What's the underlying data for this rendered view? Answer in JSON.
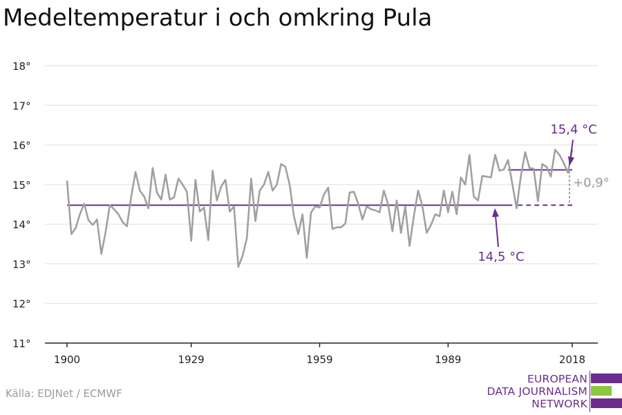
{
  "title": "Medeltemperatur i och omkring Pula",
  "source": "Källa: EDJNet / ECMWF",
  "logo": {
    "line1": "EUROPEAN",
    "line2": "DATA JOURNALISM",
    "line3": "NETWORK"
  },
  "colors": {
    "line": "#a0a0a0",
    "accent": "#6a2c8e",
    "grid": "#dddddd",
    "axis": "#222222",
    "logo_green": "#8dc63f"
  },
  "chart_data": {
    "type": "line",
    "title": "Medeltemperatur i och omkring Pula",
    "xlabel": "",
    "ylabel": "",
    "xlim": [
      1900,
      2018
    ],
    "ylim": [
      11,
      18
    ],
    "grid": true,
    "x_ticks": [
      1900,
      1929,
      1959,
      1989,
      2018
    ],
    "y_ticks": [
      {
        "value": 11,
        "label": "11°"
      },
      {
        "value": 12,
        "label": "12°"
      },
      {
        "value": 13,
        "label": "13°"
      },
      {
        "value": 14,
        "label": "14°"
      },
      {
        "value": 15,
        "label": "15°"
      },
      {
        "value": 16,
        "label": "16°"
      },
      {
        "value": 17,
        "label": "17°"
      },
      {
        "value": 18,
        "label": "18°"
      }
    ],
    "x": [
      1900,
      1901,
      1902,
      1903,
      1904,
      1905,
      1906,
      1907,
      1908,
      1909,
      1910,
      1911,
      1912,
      1913,
      1914,
      1915,
      1916,
      1917,
      1918,
      1919,
      1920,
      1921,
      1922,
      1923,
      1924,
      1925,
      1926,
      1927,
      1928,
      1929,
      1930,
      1931,
      1932,
      1933,
      1934,
      1935,
      1936,
      1937,
      1938,
      1939,
      1940,
      1941,
      1942,
      1943,
      1944,
      1945,
      1946,
      1947,
      1948,
      1949,
      1950,
      1951,
      1952,
      1953,
      1954,
      1955,
      1956,
      1957,
      1958,
      1959,
      1960,
      1961,
      1962,
      1963,
      1964,
      1965,
      1966,
      1967,
      1968,
      1969,
      1970,
      1971,
      1972,
      1973,
      1974,
      1975,
      1976,
      1977,
      1978,
      1979,
      1980,
      1981,
      1982,
      1983,
      1984,
      1985,
      1986,
      1987,
      1988,
      1989,
      1990,
      1991,
      1992,
      1993,
      1994,
      1995,
      1996,
      1997,
      1998,
      1999,
      2000,
      2001,
      2002,
      2003,
      2004,
      2005,
      2006,
      2007,
      2008,
      2009,
      2010,
      2011,
      2012,
      2013,
      2014,
      2015,
      2016,
      2017,
      2018
    ],
    "series": [
      {
        "values": [
          15.1,
          13.75,
          13.9,
          14.25,
          14.52,
          14.1,
          13.98,
          14.12,
          13.25,
          13.8,
          14.48,
          14.38,
          14.25,
          14.05,
          13.95,
          14.7,
          15.32,
          14.85,
          14.7,
          14.4,
          15.42,
          14.8,
          14.62,
          15.25,
          14.62,
          14.68,
          15.15,
          15.0,
          14.82,
          13.58,
          15.12,
          14.32,
          14.42,
          13.6,
          15.35,
          14.6,
          14.95,
          15.12,
          14.32,
          14.45,
          12.92,
          13.2,
          13.65,
          15.15,
          14.08,
          14.85,
          15.0,
          15.32,
          14.85,
          15.0,
          15.52,
          15.45,
          15.0,
          14.2,
          13.75,
          14.25,
          13.15,
          14.3,
          14.45,
          14.42,
          14.75,
          14.92,
          13.88,
          13.92,
          13.92,
          14.02,
          14.8,
          14.82,
          14.52,
          14.12,
          14.45,
          14.38,
          14.35,
          14.3,
          14.85,
          14.5,
          13.82,
          14.6,
          13.78,
          14.45,
          13.45,
          14.2,
          14.85,
          14.45,
          13.78,
          13.98,
          14.25,
          14.2,
          14.85,
          14.3,
          14.82,
          14.25,
          15.18,
          15.0,
          15.75,
          14.7,
          14.6,
          15.22,
          15.2,
          15.18,
          15.75,
          15.35,
          15.38,
          15.62,
          15.02,
          14.4,
          15.22,
          15.82,
          15.42,
          15.4,
          14.58,
          15.52,
          15.45,
          15.2,
          15.88,
          15.75,
          15.55,
          15.3,
          15.9
        ]
      }
    ],
    "reference_lines": [
      {
        "label": "14,5 °C",
        "value": 14.48,
        "x_start": 1900,
        "x_end": 2018,
        "solid_until": 2004
      },
      {
        "label": "15,4 °C",
        "value": 15.37,
        "x_start": 2004,
        "x_end": 2018
      }
    ],
    "difference_label": "+0,9°"
  }
}
